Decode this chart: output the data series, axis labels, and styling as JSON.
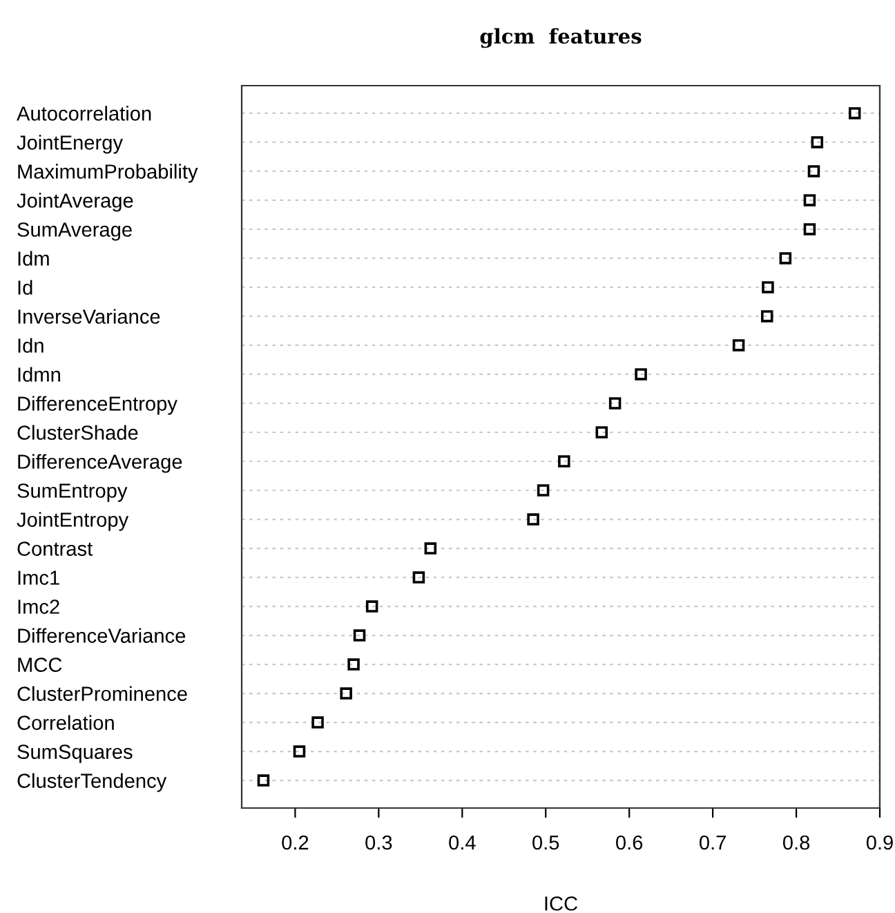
{
  "chart_data": {
    "type": "scatter",
    "title": "glcm  features",
    "xlabel": "ICC",
    "categories": [
      "Autocorrelation",
      "JointEnergy",
      "MaximumProbability",
      "JointAverage",
      "SumAverage",
      "Idm",
      "Id",
      "InverseVariance",
      "Idn",
      "Idmn",
      "DifferenceEntropy",
      "ClusterShade",
      "DifferenceAverage",
      "SumEntropy",
      "JointEntropy",
      "Contrast",
      "Imc1",
      "Imc2",
      "DifferenceVariance",
      "MCC",
      "ClusterProminence",
      "Correlation",
      "SumSquares",
      "ClusterTendency"
    ],
    "orientation": "horizontal",
    "series": [
      {
        "color": "#000000",
        "values": [
          0.87,
          0.825,
          0.821,
          0.816,
          0.816,
          0.787,
          0.766,
          0.765,
          0.731,
          0.614,
          0.583,
          0.567,
          0.522,
          0.497,
          0.485,
          0.362,
          0.348,
          0.292,
          0.277,
          0.27,
          0.261,
          0.227,
          0.205,
          0.162
        ]
      }
    ],
    "xlim": [
      0.136,
      0.9
    ],
    "xticks": [
      0.2,
      0.3,
      0.4,
      0.5,
      0.6,
      0.7,
      0.8,
      0.9
    ],
    "grid": "y",
    "marker": "square",
    "ref_lines": [
      {
        "axis": "x",
        "value": 0.9,
        "color": "#cc0000",
        "line_style": "dashed"
      }
    ]
  }
}
